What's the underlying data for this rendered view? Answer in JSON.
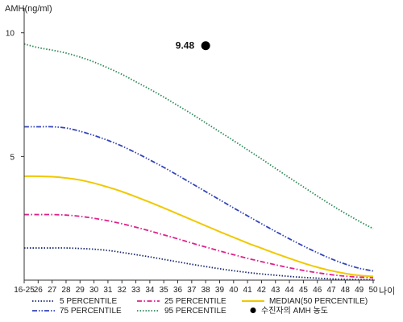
{
  "chart_data": {
    "type": "line",
    "ylabel": "AMH(ng/ml)",
    "xlabel": "나이",
    "categories": [
      "16-25",
      "26",
      "27",
      "28",
      "29",
      "30",
      "31",
      "32",
      "33",
      "34",
      "35",
      "36",
      "37",
      "38",
      "39",
      "40",
      "41",
      "42",
      "43",
      "44",
      "45",
      "46",
      "47",
      "48",
      "49",
      "50"
    ],
    "ylim": [
      0,
      11
    ],
    "yticks": [
      5,
      10
    ],
    "grid": false,
    "legend_position": "bottom",
    "series": [
      {
        "name": "5 PERCENTILE",
        "color": "#1c2b6e",
        "dash": "dotted",
        "values": [
          1.3,
          1.3,
          1.3,
          1.3,
          1.28,
          1.25,
          1.2,
          1.12,
          1.03,
          0.94,
          0.84,
          0.74,
          0.64,
          0.55,
          0.46,
          0.38,
          0.31,
          0.25,
          0.2,
          0.15,
          0.11,
          0.08,
          0.05,
          0.03,
          0.02,
          0.01
        ]
      },
      {
        "name": "25 PERCENTILE",
        "color": "#e0208a",
        "dash": "dashdot",
        "values": [
          2.65,
          2.65,
          2.65,
          2.63,
          2.58,
          2.5,
          2.4,
          2.28,
          2.14,
          1.99,
          1.83,
          1.67,
          1.5,
          1.34,
          1.18,
          1.03,
          0.88,
          0.75,
          0.62,
          0.5,
          0.39,
          0.3,
          0.22,
          0.16,
          0.12,
          0.1
        ]
      },
      {
        "name": "MEDIAN(50 PERCENTILE)",
        "color": "#f0c800",
        "dash": "solid",
        "values": [
          4.2,
          4.2,
          4.18,
          4.13,
          4.05,
          3.92,
          3.76,
          3.58,
          3.37,
          3.15,
          2.92,
          2.68,
          2.44,
          2.2,
          1.96,
          1.73,
          1.5,
          1.29,
          1.08,
          0.88,
          0.69,
          0.52,
          0.38,
          0.27,
          0.19,
          0.15
        ]
      },
      {
        "name": "75 PERCENTILE",
        "color": "#3344bb",
        "dash": "dashdotdot",
        "values": [
          6.2,
          6.2,
          6.2,
          6.15,
          6.02,
          5.85,
          5.65,
          5.42,
          5.15,
          4.86,
          4.56,
          4.24,
          3.91,
          3.58,
          3.25,
          2.92,
          2.6,
          2.28,
          1.97,
          1.67,
          1.38,
          1.11,
          0.86,
          0.65,
          0.48,
          0.37
        ]
      },
      {
        "name": "95 PERCENTILE",
        "color": "#2e8b57",
        "dash": "dotted",
        "values": [
          9.55,
          9.4,
          9.3,
          9.18,
          9.02,
          8.82,
          8.58,
          8.32,
          8.02,
          7.72,
          7.4,
          7.06,
          6.72,
          6.36,
          6.0,
          5.64,
          5.27,
          4.9,
          4.52,
          4.14,
          3.77,
          3.4,
          3.04,
          2.7,
          2.38,
          2.08
        ]
      }
    ],
    "marker": {
      "name": "수진자의 AMH 농도",
      "x": "38",
      "y": 9.48,
      "label": "9.48",
      "color": "#000000"
    },
    "legend_rows": [
      [
        "5 PERCENTILE",
        "25 PERCENTILE",
        "MEDIAN(50 PERCENTILE)"
      ],
      [
        "75 PERCENTILE",
        "95 PERCENTILE",
        "수진자의 AMH 농도"
      ]
    ]
  }
}
